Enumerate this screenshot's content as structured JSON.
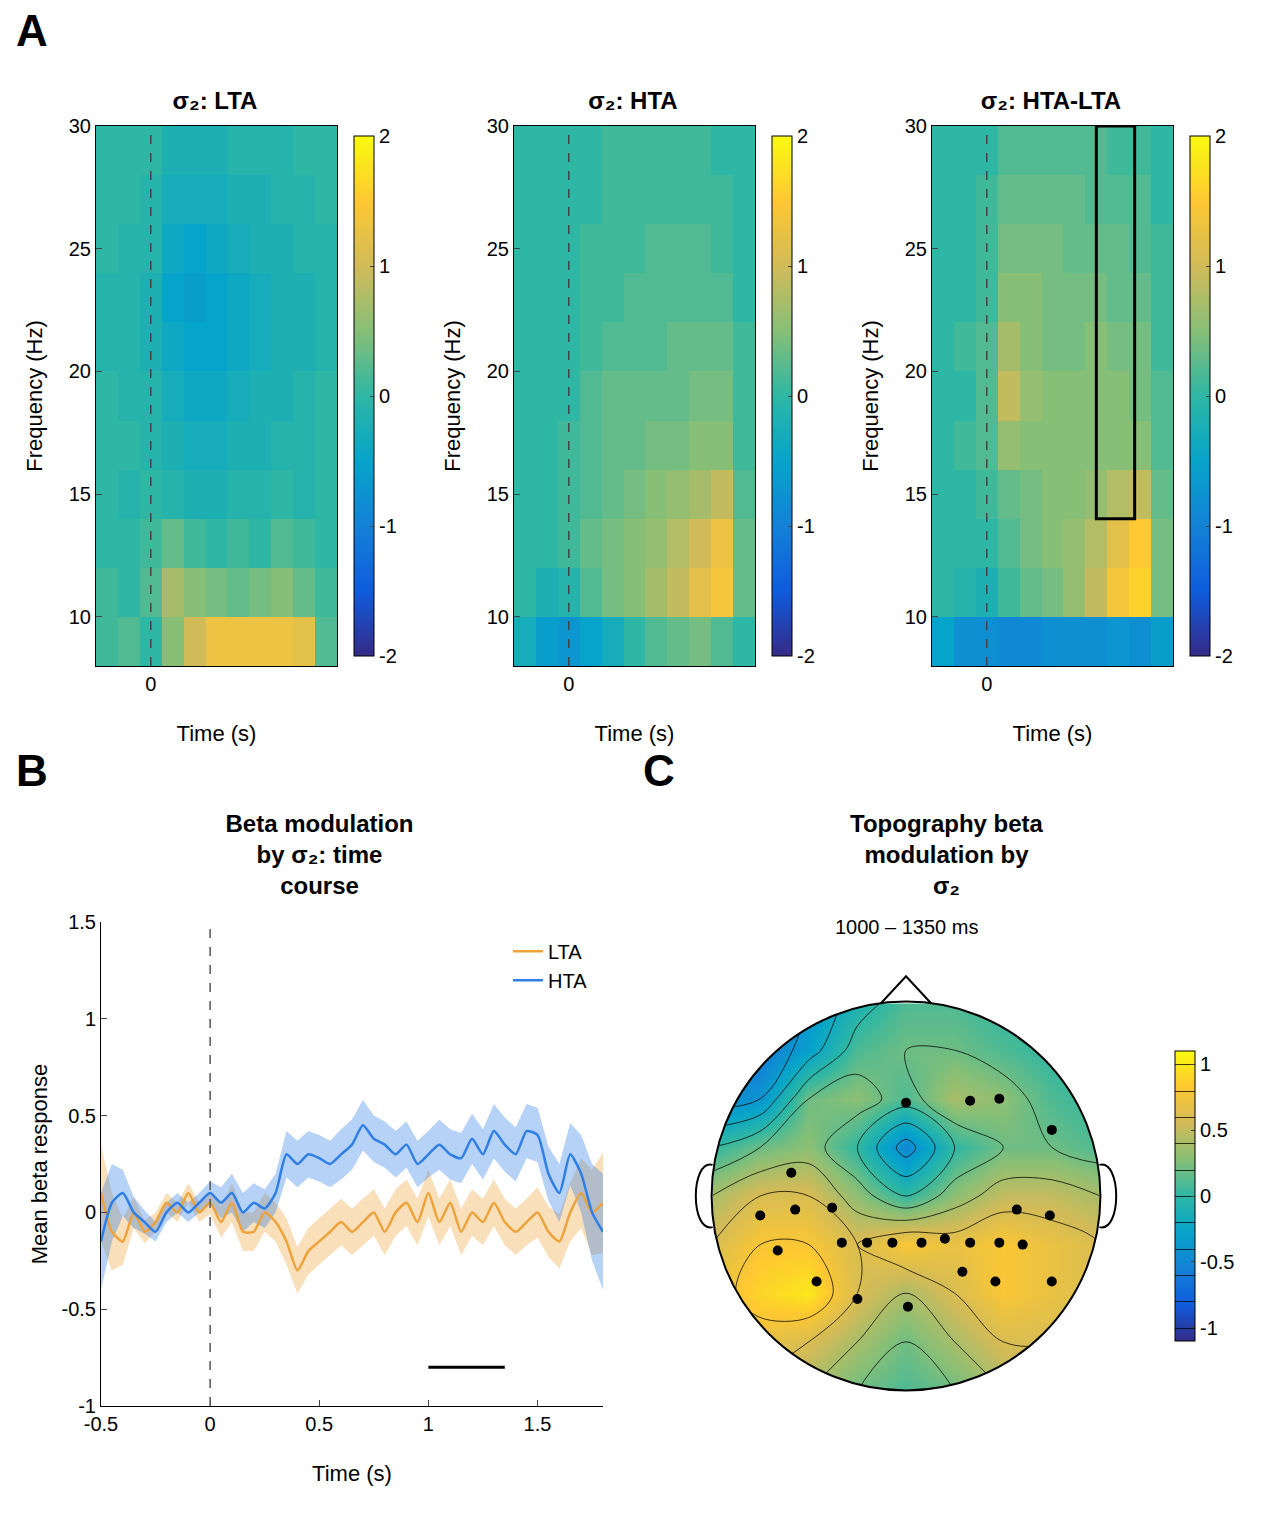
{
  "chart_data": [
    {
      "type": "heatmap",
      "panel": "A",
      "title": "σ₂: LTA",
      "x_label": "Time (s)",
      "y_label": "Frequency (Hz)",
      "x": [
        -0.4,
        -0.2,
        0,
        0.2,
        0.4,
        0.6,
        0.8,
        1,
        1.2,
        1.4,
        1.6
      ],
      "y": [
        9,
        11,
        13,
        15,
        17,
        19,
        21,
        23,
        25,
        27,
        29
      ],
      "z": [
        [
          0.1,
          0.2,
          0.0,
          0.5,
          1.0,
          1.3,
          1.3,
          1.3,
          1.3,
          1.2,
          0.2
        ],
        [
          0.1,
          0.0,
          0.2,
          0.7,
          0.5,
          0.4,
          0.3,
          0.4,
          0.5,
          0.3,
          0.1
        ],
        [
          0.0,
          0.0,
          0.1,
          0.3,
          0.1,
          0.0,
          0.1,
          0.0,
          0.2,
          0.1,
          0.0
        ],
        [
          0.0,
          -0.1,
          0.0,
          -0.1,
          -0.2,
          -0.2,
          -0.1,
          -0.1,
          0.0,
          -0.1,
          0.0
        ],
        [
          0.0,
          0.0,
          -0.1,
          -0.2,
          -0.3,
          -0.3,
          -0.2,
          -0.2,
          -0.1,
          -0.1,
          0.0
        ],
        [
          0.0,
          -0.1,
          -0.1,
          -0.3,
          -0.4,
          -0.4,
          -0.3,
          -0.2,
          -0.2,
          -0.1,
          0.0
        ],
        [
          -0.1,
          -0.1,
          -0.2,
          -0.4,
          -0.5,
          -0.5,
          -0.4,
          -0.3,
          -0.2,
          -0.2,
          -0.1
        ],
        [
          -0.1,
          -0.1,
          -0.2,
          -0.5,
          -0.6,
          -0.5,
          -0.4,
          -0.3,
          -0.2,
          -0.2,
          -0.1
        ],
        [
          0.0,
          -0.1,
          -0.1,
          -0.4,
          -0.5,
          -0.4,
          -0.3,
          -0.2,
          -0.2,
          -0.1,
          -0.1
        ],
        [
          0.0,
          0.0,
          -0.1,
          -0.3,
          -0.3,
          -0.3,
          -0.2,
          -0.2,
          -0.1,
          -0.1,
          0.0
        ],
        [
          0.0,
          0.0,
          0.0,
          -0.2,
          -0.2,
          -0.2,
          -0.1,
          -0.1,
          -0.1,
          0.0,
          0.0
        ]
      ],
      "xlim": [
        -0.5,
        1.7
      ],
      "xticks": [
        0
      ],
      "ylim": [
        8,
        30
      ],
      "yticks": [
        10,
        15,
        20,
        25,
        30
      ],
      "color_range": [
        -2,
        2
      ],
      "color_ticks": [
        -2,
        -1,
        0,
        1,
        2
      ],
      "vline": 0
    },
    {
      "type": "heatmap",
      "title": "σ₂: HTA",
      "x_label": "Time (s)",
      "y_label": "Frequency (Hz)",
      "x": [
        -0.4,
        -0.2,
        0,
        0.2,
        0.4,
        0.6,
        0.8,
        1,
        1.2,
        1.4,
        1.6
      ],
      "y": [
        9,
        11,
        13,
        15,
        17,
        19,
        21,
        23,
        25,
        27,
        29
      ],
      "z": [
        [
          -0.3,
          -0.6,
          -0.7,
          -0.5,
          -0.3,
          0.0,
          0.2,
          0.3,
          0.4,
          0.2,
          0.0
        ],
        [
          0.0,
          -0.2,
          -0.1,
          0.2,
          0.4,
          0.5,
          0.7,
          0.9,
          1.2,
          1.4,
          0.3
        ],
        [
          0.0,
          0.0,
          0.1,
          0.3,
          0.4,
          0.5,
          0.6,
          0.8,
          1.0,
          1.3,
          0.3
        ],
        [
          0.0,
          0.0,
          0.1,
          0.2,
          0.3,
          0.4,
          0.5,
          0.6,
          0.7,
          0.9,
          0.2
        ],
        [
          0.0,
          0.0,
          0.1,
          0.2,
          0.3,
          0.3,
          0.4,
          0.4,
          0.5,
          0.5,
          0.1
        ],
        [
          0.0,
          0.0,
          0.0,
          0.2,
          0.3,
          0.3,
          0.3,
          0.3,
          0.4,
          0.4,
          0.1
        ],
        [
          0.0,
          0.0,
          0.0,
          0.1,
          0.2,
          0.2,
          0.2,
          0.3,
          0.3,
          0.3,
          0.1
        ],
        [
          0.0,
          0.0,
          0.0,
          0.1,
          0.1,
          0.2,
          0.2,
          0.2,
          0.2,
          0.2,
          0.0
        ],
        [
          0.0,
          0.0,
          0.0,
          0.1,
          0.1,
          0.1,
          0.2,
          0.2,
          0.2,
          0.1,
          0.0
        ],
        [
          0.0,
          0.0,
          0.0,
          0.0,
          0.1,
          0.1,
          0.1,
          0.1,
          0.1,
          0.1,
          0.0
        ],
        [
          0.0,
          0.0,
          0.0,
          0.0,
          0.1,
          0.1,
          0.1,
          0.1,
          0.1,
          0.0,
          0.0
        ]
      ],
      "xlim": [
        -0.5,
        1.7
      ],
      "xticks": [
        0
      ],
      "ylim": [
        8,
        30
      ],
      "yticks": [
        10,
        15,
        20,
        25,
        30
      ],
      "color_range": [
        -2,
        2
      ],
      "color_ticks": [
        -2,
        -1,
        0,
        1,
        2
      ],
      "vline": 0
    },
    {
      "type": "heatmap",
      "title": "σ₂: HTA-LTA",
      "x_label": "Time (s)",
      "y_label": "Frequency (Hz)",
      "x": [
        -0.4,
        -0.2,
        0,
        0.2,
        0.4,
        0.6,
        0.8,
        1,
        1.2,
        1.4,
        1.6
      ],
      "y": [
        9,
        11,
        13,
        15,
        17,
        19,
        21,
        23,
        25,
        27,
        29
      ],
      "z": [
        [
          -0.5,
          -0.8,
          -0.8,
          -0.9,
          -0.9,
          -0.8,
          -0.8,
          -0.8,
          -0.7,
          -0.8,
          -0.6
        ],
        [
          0.0,
          -0.1,
          -0.2,
          0.1,
          0.3,
          0.4,
          0.6,
          0.9,
          1.4,
          1.6,
          0.4
        ],
        [
          0.0,
          0.0,
          0.0,
          0.2,
          0.4,
          0.5,
          0.6,
          0.8,
          1.2,
          1.5,
          0.4
        ],
        [
          0.0,
          0.0,
          0.1,
          0.3,
          0.4,
          0.5,
          0.5,
          0.6,
          0.8,
          0.9,
          0.3
        ],
        [
          0.0,
          0.1,
          0.2,
          0.6,
          0.5,
          0.5,
          0.5,
          0.5,
          0.5,
          0.5,
          0.2
        ],
        [
          0.0,
          0.0,
          0.2,
          0.9,
          0.6,
          0.5,
          0.5,
          0.5,
          0.5,
          0.4,
          0.2
        ],
        [
          0.0,
          0.1,
          0.2,
          0.7,
          0.5,
          0.4,
          0.4,
          0.5,
          0.4,
          0.4,
          0.1
        ],
        [
          0.0,
          0.0,
          0.1,
          0.5,
          0.5,
          0.4,
          0.4,
          0.4,
          0.3,
          0.3,
          0.1
        ],
        [
          0.0,
          0.0,
          0.1,
          0.4,
          0.4,
          0.4,
          0.3,
          0.3,
          0.3,
          0.2,
          0.1
        ],
        [
          0.0,
          0.0,
          0.1,
          0.3,
          0.3,
          0.3,
          0.3,
          0.2,
          0.2,
          0.2,
          0.0
        ],
        [
          0.0,
          0.0,
          0.0,
          0.2,
          0.2,
          0.2,
          0.2,
          0.2,
          0.1,
          0.1,
          0.0
        ]
      ],
      "xlim": [
        -0.5,
        1.7
      ],
      "xticks": [
        0
      ],
      "ylim": [
        8,
        30
      ],
      "yticks": [
        10,
        15,
        20,
        25,
        30
      ],
      "color_range": [
        -2,
        2
      ],
      "color_ticks": [
        -2,
        -1,
        0,
        1,
        2
      ],
      "vline": 0,
      "highlight": {
        "x": [
          1.0,
          1.35
        ],
        "y": [
          14,
          30
        ]
      }
    },
    {
      "type": "line",
      "panel": "B",
      "title": "Beta modulation by σ₂: time course",
      "x_label": "Time (s)",
      "y_label": "Mean beta response",
      "x": [
        -0.5,
        -0.45,
        -0.4,
        -0.35,
        -0.3,
        -0.25,
        -0.2,
        -0.15,
        -0.1,
        -0.05,
        0,
        0.05,
        0.1,
        0.15,
        0.2,
        0.25,
        0.3,
        0.35,
        0.4,
        0.45,
        0.5,
        0.55,
        0.6,
        0.65,
        0.7,
        0.75,
        0.8,
        0.85,
        0.9,
        0.95,
        1,
        1.05,
        1.1,
        1.15,
        1.2,
        1.25,
        1.3,
        1.35,
        1.4,
        1.45,
        1.5,
        1.55,
        1.6,
        1.65,
        1.7,
        1.75,
        1.8
      ],
      "series": [
        {
          "name": "LTA",
          "color": "#eda33a",
          "values": [
            0.1,
            -0.1,
            -0.15,
            0.0,
            -0.1,
            -0.05,
            0.05,
            0.0,
            0.1,
            0.0,
            0.05,
            -0.05,
            0.05,
            -0.1,
            -0.1,
            0.0,
            -0.05,
            -0.15,
            -0.3,
            -0.2,
            -0.15,
            -0.1,
            -0.05,
            -0.1,
            -0.05,
            0.0,
            -0.1,
            0.0,
            0.05,
            -0.05,
            0.1,
            -0.05,
            0.05,
            -0.1,
            0.0,
            -0.05,
            0.05,
            -0.05,
            -0.1,
            -0.05,
            0.0,
            -0.1,
            -0.15,
            0.0,
            0.1,
            0.0,
            0.05
          ],
          "error": [
            0.25,
            0.2,
            0.12,
            0.08,
            0.06,
            0.05,
            0.05,
            0.05,
            0.05,
            0.05,
            0.06,
            0.08,
            0.1,
            0.1,
            0.1,
            0.1,
            0.1,
            0.12,
            0.12,
            0.12,
            0.12,
            0.12,
            0.12,
            0.12,
            0.12,
            0.12,
            0.12,
            0.12,
            0.12,
            0.12,
            0.12,
            0.12,
            0.12,
            0.12,
            0.12,
            0.12,
            0.12,
            0.12,
            0.12,
            0.12,
            0.13,
            0.13,
            0.14,
            0.15,
            0.18,
            0.22,
            0.26
          ]
        },
        {
          "name": "HTA",
          "color": "#2f7fe6",
          "values": [
            -0.15,
            0.05,
            0.1,
            0.0,
            -0.05,
            -0.1,
            0.0,
            0.05,
            0.0,
            0.05,
            0.1,
            0.05,
            0.1,
            0.0,
            0.05,
            0.02,
            0.1,
            0.3,
            0.25,
            0.3,
            0.28,
            0.25,
            0.3,
            0.35,
            0.45,
            0.38,
            0.35,
            0.3,
            0.35,
            0.25,
            0.3,
            0.35,
            0.3,
            0.28,
            0.38,
            0.3,
            0.42,
            0.35,
            0.3,
            0.42,
            0.4,
            0.2,
            0.1,
            0.3,
            0.2,
            0.0,
            -0.1
          ],
          "error": [
            0.25,
            0.2,
            0.12,
            0.08,
            0.06,
            0.05,
            0.05,
            0.05,
            0.05,
            0.05,
            0.06,
            0.08,
            0.1,
            0.1,
            0.1,
            0.1,
            0.1,
            0.12,
            0.12,
            0.12,
            0.12,
            0.12,
            0.13,
            0.13,
            0.13,
            0.12,
            0.12,
            0.12,
            0.12,
            0.12,
            0.12,
            0.13,
            0.13,
            0.13,
            0.13,
            0.13,
            0.14,
            0.14,
            0.14,
            0.14,
            0.14,
            0.14,
            0.15,
            0.16,
            0.2,
            0.25,
            0.3
          ]
        }
      ],
      "xlim": [
        -0.5,
        1.8
      ],
      "xticks": [
        -0.5,
        0,
        0.5,
        1,
        1.5
      ],
      "ylim": [
        -1,
        1.5
      ],
      "yticks": [
        -1,
        -0.5,
        0,
        0.5,
        1,
        1.5
      ],
      "vline": 0,
      "significance": {
        "x": [
          1.0,
          1.35
        ],
        "y": -0.8
      },
      "legend": "top right",
      "grid": false
    },
    {
      "type": "topography",
      "panel": "C",
      "title": "Topography beta modulation by σ₂",
      "subtitle": "1000 – 1350 ms",
      "tick_labels": false,
      "x": [
        -1,
        -0.75,
        -0.5,
        -0.25,
        0,
        0.25,
        0.5,
        0.75,
        1
      ],
      "y": [
        -1,
        -0.75,
        -0.5,
        -0.25,
        0,
        0.25,
        0.5,
        0.75,
        1
      ],
      "z": [
        [
          0.5,
          0.5,
          0.4,
          0.2,
          0.1,
          0.2,
          0.4,
          0.5,
          0.5
        ],
        [
          0.6,
          0.7,
          0.6,
          0.4,
          0.2,
          0.4,
          0.6,
          0.6,
          0.5
        ],
        [
          0.7,
          0.9,
          1.0,
          0.6,
          0.4,
          0.6,
          0.8,
          0.7,
          0.6
        ],
        [
          0.6,
          0.8,
          0.8,
          0.6,
          0.8,
          0.7,
          0.8,
          0.7,
          0.6
        ],
        [
          0.4,
          0.6,
          0.6,
          0.3,
          0.0,
          0.3,
          0.5,
          0.5,
          0.4
        ],
        [
          0.0,
          0.2,
          0.3,
          0.0,
          -0.5,
          0.0,
          0.2,
          0.2,
          0.1
        ],
        [
          -0.5,
          -0.4,
          0.2,
          0.3,
          0.1,
          0.4,
          0.3,
          0.1,
          0.0
        ],
        [
          -0.7,
          -0.6,
          -0.3,
          0.1,
          0.2,
          0.2,
          0.1,
          0.0,
          0.0
        ],
        [
          -0.8,
          -0.7,
          -0.4,
          -0.1,
          0.1,
          0.1,
          0.0,
          0.0,
          0.0
        ]
      ],
      "color_range": [
        -1.1,
        1.1
      ],
      "color_ticks": [
        -1,
        -0.5,
        0,
        0.5,
        1
      ],
      "electrodes": [
        [
          0,
          0.48
        ],
        [
          0.33,
          0.49
        ],
        [
          0.48,
          0.5
        ],
        [
          0.75,
          0.34
        ],
        [
          -0.59,
          0.12
        ],
        [
          -0.75,
          -0.1
        ],
        [
          -0.57,
          -0.07
        ],
        [
          -0.38,
          -0.06
        ],
        [
          -0.66,
          -0.28
        ],
        [
          -0.46,
          -0.44
        ],
        [
          -0.33,
          -0.24
        ],
        [
          -0.2,
          -0.24
        ],
        [
          -0.07,
          -0.24
        ],
        [
          0.08,
          -0.24
        ],
        [
          0.2,
          -0.22
        ],
        [
          0.33,
          -0.24
        ],
        [
          -0.25,
          -0.53
        ],
        [
          0.01,
          -0.57
        ],
        [
          0.29,
          -0.39
        ],
        [
          0.46,
          -0.44
        ],
        [
          0.75,
          -0.44
        ],
        [
          0.57,
          -0.07
        ],
        [
          0.74,
          -0.1
        ],
        [
          0.48,
          -0.24
        ],
        [
          0.6,
          -0.25
        ]
      ]
    }
  ]
}
